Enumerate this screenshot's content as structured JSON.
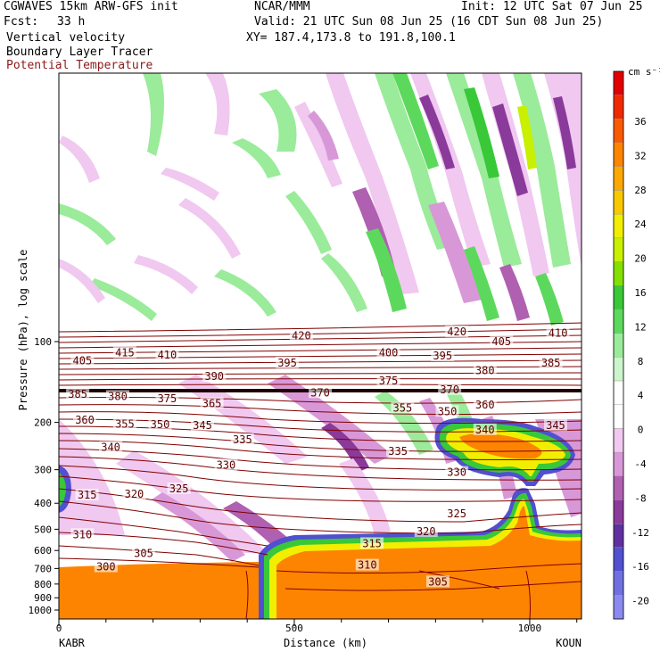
{
  "header": {
    "model": "CGWAVES 15km ARW-GFS init",
    "org": "NCAR/MMM",
    "init": "Init: 12 UTC Sat 07 Jun 25",
    "fcst_label": "Fcst:",
    "fcst_value": "33 h",
    "valid": "Valid: 21 UTC Sun 08 Jun 25 (16 CDT Sun 08 Jun 25)",
    "field1": "Vertical velocity",
    "field2": "Boundary Layer Tracer",
    "field3": "Potential Temperature",
    "field3_color": "#8b1a1a",
    "xy": "XY= 187.4,173.8 to 191.8,100.1"
  },
  "colorbar": {
    "units": "cm s⁻¹",
    "labels": [
      "36",
      "32",
      "28",
      "24",
      "20",
      "16",
      "12",
      "8",
      "4",
      "0",
      "-4",
      "-8",
      "-12",
      "-16",
      "-20"
    ],
    "colors": [
      "#e30000",
      "#f02a00",
      "#fa5a00",
      "#fd8400",
      "#fca800",
      "#f9c800",
      "#f2ee00",
      "#c8f000",
      "#84e000",
      "#38c838",
      "#5cd95c",
      "#9aeb9a",
      "#cdf5cd",
      "#ffffff",
      "#ffffff",
      "#f0c8f0",
      "#d898d8",
      "#b060b0",
      "#8a3a9a",
      "#6030a0",
      "#5050d0",
      "#7070e0",
      "#8a8af0"
    ]
  },
  "chart_data": {
    "type": "contour-cross-section",
    "xlabel": "Distance (km)",
    "ylabel": "Pressure (hPa), log scale",
    "x_ticks": [
      0,
      500,
      1000
    ],
    "xlim": [
      0,
      1110
    ],
    "y_ticks": [
      100,
      200,
      300,
      400,
      500,
      600,
      700,
      800,
      900,
      1000
    ],
    "ylim": [
      1000,
      10
    ],
    "y_scale": "log",
    "left_endpoint": "KABR",
    "right_endpoint": "KOUN",
    "theta_labels": [
      {
        "text": "420",
        "x": 515,
        "p": 95
      },
      {
        "text": "420",
        "x": 845,
        "p": 92
      },
      {
        "text": "405",
        "x": 940,
        "p": 100
      },
      {
        "text": "410",
        "x": 1060,
        "p": 93
      },
      {
        "text": "415",
        "x": 140,
        "p": 110
      },
      {
        "text": "410",
        "x": 230,
        "p": 112
      },
      {
        "text": "405",
        "x": 50,
        "p": 118
      },
      {
        "text": "400",
        "x": 700,
        "p": 110
      },
      {
        "text": "395",
        "x": 485,
        "p": 120
      },
      {
        "text": "395",
        "x": 815,
        "p": 113
      },
      {
        "text": "385",
        "x": 1045,
        "p": 120
      },
      {
        "text": "380",
        "x": 905,
        "p": 128
      },
      {
        "text": "390",
        "x": 330,
        "p": 135
      },
      {
        "text": "375",
        "x": 700,
        "p": 140
      },
      {
        "text": "370",
        "x": 555,
        "p": 155
      },
      {
        "text": "370",
        "x": 830,
        "p": 151
      },
      {
        "text": "385",
        "x": 40,
        "p": 157
      },
      {
        "text": "380",
        "x": 125,
        "p": 160
      },
      {
        "text": "375",
        "x": 230,
        "p": 163
      },
      {
        "text": "365",
        "x": 325,
        "p": 170
      },
      {
        "text": "360",
        "x": 905,
        "p": 172
      },
      {
        "text": "355",
        "x": 730,
        "p": 177
      },
      {
        "text": "350",
        "x": 825,
        "p": 182
      },
      {
        "text": "360",
        "x": 55,
        "p": 196
      },
      {
        "text": "355",
        "x": 140,
        "p": 203
      },
      {
        "text": "350",
        "x": 215,
        "p": 204
      },
      {
        "text": "345",
        "x": 305,
        "p": 205
      },
      {
        "text": "340",
        "x": 905,
        "p": 213
      },
      {
        "text": "345",
        "x": 1055,
        "p": 205
      },
      {
        "text": "335",
        "x": 390,
        "p": 232
      },
      {
        "text": "340",
        "x": 110,
        "p": 248
      },
      {
        "text": "335",
        "x": 720,
        "p": 256
      },
      {
        "text": "330",
        "x": 355,
        "p": 288
      },
      {
        "text": "330",
        "x": 845,
        "p": 307
      },
      {
        "text": "325",
        "x": 255,
        "p": 353
      },
      {
        "text": "320",
        "x": 160,
        "p": 370
      },
      {
        "text": "315",
        "x": 60,
        "p": 373
      },
      {
        "text": "325",
        "x": 845,
        "p": 437
      },
      {
        "text": "320",
        "x": 780,
        "p": 510
      },
      {
        "text": "310",
        "x": 50,
        "p": 523
      },
      {
        "text": "315",
        "x": 665,
        "p": 565
      },
      {
        "text": "305",
        "x": 180,
        "p": 615
      },
      {
        "text": "310",
        "x": 655,
        "p": 680
      },
      {
        "text": "300",
        "x": 100,
        "p": 690
      },
      {
        "text": "305",
        "x": 805,
        "p": 785
      }
    ]
  }
}
